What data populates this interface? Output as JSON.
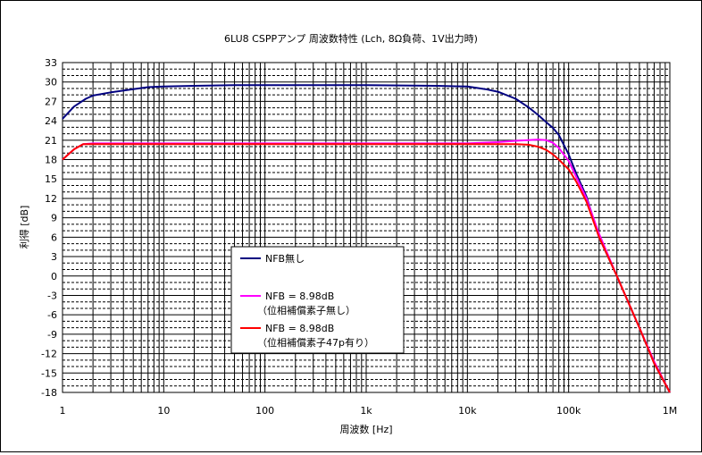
{
  "chart_data": {
    "type": "line",
    "title": "6LU8 CSPPアンプ 周波数特性 (Lch, 8Ω負荷、1V出力時)",
    "xlabel": "周波数 [Hz]",
    "ylabel": "利得 [dB]",
    "xscale": "log",
    "xlim": [
      1,
      1000000
    ],
    "ylim": [
      -18,
      33
    ],
    "x_ticks": [
      {
        "value": 1,
        "label": "1"
      },
      {
        "value": 10,
        "label": "10"
      },
      {
        "value": 100,
        "label": "100"
      },
      {
        "value": 1000,
        "label": "1k"
      },
      {
        "value": 10000,
        "label": "10k"
      },
      {
        "value": 100000,
        "label": "100k"
      },
      {
        "value": 1000000,
        "label": "1M"
      }
    ],
    "y_ticks": [
      {
        "value": 33,
        "label": "33"
      },
      {
        "value": 30,
        "label": "30"
      },
      {
        "value": 27,
        "label": "27"
      },
      {
        "value": 24,
        "label": "24"
      },
      {
        "value": 21,
        "label": "21"
      },
      {
        "value": 18,
        "label": "18"
      },
      {
        "value": 15,
        "label": "15"
      },
      {
        "value": 12,
        "label": "12"
      },
      {
        "value": 9,
        "label": "9"
      },
      {
        "value": 6,
        "label": "6"
      },
      {
        "value": 3,
        "label": "3"
      },
      {
        "value": 0,
        "label": "0"
      },
      {
        "value": -3,
        "label": "-3"
      },
      {
        "value": -6,
        "label": "-6"
      },
      {
        "value": -9,
        "label": "-9"
      },
      {
        "value": -12,
        "label": "-12"
      },
      {
        "value": -15,
        "label": "-15"
      },
      {
        "value": -18,
        "label": "-18"
      }
    ],
    "grid": true,
    "legend_position": "center-left",
    "series": [
      {
        "name": "NFB無し",
        "color": "#000080",
        "points": [
          [
            1,
            24.3
          ],
          [
            1.3,
            26.2
          ],
          [
            1.7,
            27.4
          ],
          [
            2,
            27.9
          ],
          [
            3,
            28.4
          ],
          [
            5,
            28.9
          ],
          [
            7,
            29.2
          ],
          [
            10,
            29.3
          ],
          [
            20,
            29.4
          ],
          [
            50,
            29.5
          ],
          [
            100,
            29.5
          ],
          [
            1000,
            29.5
          ],
          [
            5000,
            29.4
          ],
          [
            10000,
            29.3
          ],
          [
            15000,
            28.9
          ],
          [
            20000,
            28.5
          ],
          [
            30000,
            27.4
          ],
          [
            40000,
            26.1
          ],
          [
            50000,
            24.9
          ],
          [
            60000,
            23.8
          ],
          [
            70000,
            22.9
          ],
          [
            80000,
            21.8
          ],
          [
            100000,
            18.8
          ],
          [
            120000,
            15.7
          ],
          [
            150000,
            12.3
          ],
          [
            200000,
            6.0
          ],
          [
            300000,
            0.0
          ],
          [
            500000,
            -8.0
          ],
          [
            700000,
            -13.5
          ],
          [
            1000000,
            -18.0
          ]
        ]
      },
      {
        "name": "NFB = 8.98dB\n（位相補償素子無し）",
        "color": "#ff00ff",
        "points": [
          [
            1,
            18.0
          ],
          [
            1.3,
            19.6
          ],
          [
            1.6,
            20.4
          ],
          [
            2,
            20.5
          ],
          [
            3,
            20.5
          ],
          [
            10,
            20.5
          ],
          [
            100,
            20.5
          ],
          [
            1000,
            20.5
          ],
          [
            10000,
            20.5
          ],
          [
            20000,
            20.7
          ],
          [
            30000,
            20.9
          ],
          [
            40000,
            21.0
          ],
          [
            50000,
            21.1
          ],
          [
            60000,
            21.0
          ],
          [
            70000,
            20.6
          ],
          [
            80000,
            19.8
          ],
          [
            100000,
            17.8
          ],
          [
            120000,
            15.2
          ],
          [
            150000,
            12.0
          ],
          [
            200000,
            6.5
          ],
          [
            300000,
            0.0
          ],
          [
            500000,
            -8.0
          ],
          [
            700000,
            -13.2
          ],
          [
            1000000,
            -18.0
          ]
        ]
      },
      {
        "name": "NFB = 8.98dB\n（位相補償素子47p有り）",
        "color": "#ff0000",
        "points": [
          [
            1,
            18.0
          ],
          [
            1.3,
            19.6
          ],
          [
            1.6,
            20.4
          ],
          [
            2,
            20.4
          ],
          [
            3,
            20.4
          ],
          [
            10,
            20.4
          ],
          [
            100,
            20.4
          ],
          [
            1000,
            20.4
          ],
          [
            10000,
            20.4
          ],
          [
            20000,
            20.4
          ],
          [
            30000,
            20.4
          ],
          [
            40000,
            20.3
          ],
          [
            50000,
            20.0
          ],
          [
            60000,
            19.5
          ],
          [
            70000,
            18.8
          ],
          [
            80000,
            18.0
          ],
          [
            100000,
            16.5
          ],
          [
            120000,
            14.5
          ],
          [
            150000,
            11.5
          ],
          [
            200000,
            6.0
          ],
          [
            300000,
            0.0
          ],
          [
            500000,
            -8.0
          ],
          [
            700000,
            -13.5
          ],
          [
            1000000,
            -18.0
          ]
        ]
      }
    ]
  }
}
